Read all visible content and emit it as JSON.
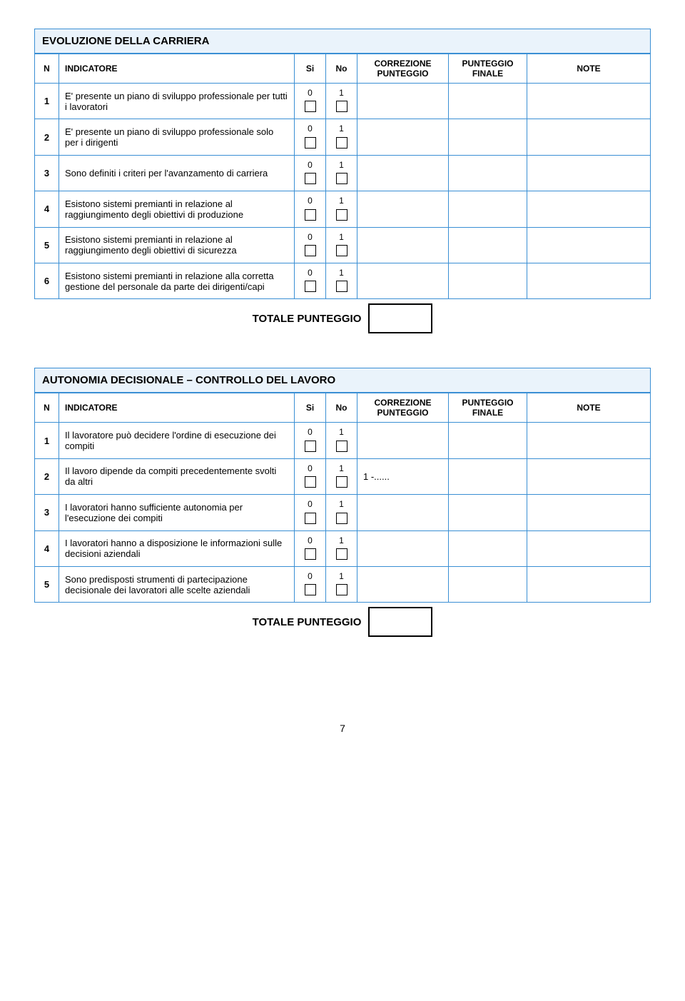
{
  "page_number": "7",
  "tables": [
    {
      "title": "EVOLUZIONE DELLA CARRIERA",
      "headers": {
        "n": "N",
        "indicator": "INDICATORE",
        "si": "Si",
        "no": "No",
        "correzione": "CORREZIONE PUNTEGGIO",
        "finale": "PUNTEGGIO FINALE",
        "note": "NOTE"
      },
      "rows": [
        {
          "n": "1",
          "text": "E' presente un piano di sviluppo professionale per tutti i lavoratori",
          "si": "0",
          "no": "1",
          "corr": ""
        },
        {
          "n": "2",
          "text": "E' presente un piano di sviluppo professionale solo per i dirigenti",
          "si": "0",
          "no": "1",
          "corr": ""
        },
        {
          "n": "3",
          "text": "Sono definiti i criteri per l'avanzamento di carriera",
          "si": "0",
          "no": "1",
          "corr": ""
        },
        {
          "n": "4",
          "text": "Esistono sistemi premianti in relazione al raggiungimento degli obiettivi di produzione",
          "si": "0",
          "no": "1",
          "corr": ""
        },
        {
          "n": "5",
          "text": "Esistono sistemi premianti in relazione al raggiungimento degli obiettivi di sicurezza",
          "si": "0",
          "no": "1",
          "corr": ""
        },
        {
          "n": "6",
          "text": "Esistono sistemi premianti in relazione alla corretta gestione del personale da parte dei dirigenti/capi",
          "si": "0",
          "no": "1",
          "corr": ""
        }
      ],
      "total_label": "TOTALE PUNTEGGIO"
    },
    {
      "title": "AUTONOMIA DECISIONALE – CONTROLLO DEL LAVORO",
      "headers": {
        "n": "N",
        "indicator": "INDICATORE",
        "si": "Si",
        "no": "No",
        "correzione": "CORREZIONE PUNTEGGIO",
        "finale": "PUNTEGGIO FINALE",
        "note": "NOTE"
      },
      "rows": [
        {
          "n": "1",
          "text": "Il lavoratore può decidere l'ordine di esecuzione dei compiti",
          "si": "0",
          "no": "1",
          "corr": ""
        },
        {
          "n": "2",
          "text": "Il lavoro dipende da compiti precedentemente svolti da altri",
          "si": "0",
          "no": "1",
          "corr": "1 -......"
        },
        {
          "n": "3",
          "text": "I lavoratori hanno sufficiente autonomia per l'esecuzione dei compiti",
          "si": "0",
          "no": "1",
          "corr": ""
        },
        {
          "n": "4",
          "text": "I lavoratori hanno a disposizione le informazioni sulle decisioni aziendali",
          "si": "0",
          "no": "1",
          "corr": ""
        },
        {
          "n": "5",
          "text": "Sono predisposti strumenti di partecipazione decisionale dei lavoratori alle scelte aziendali",
          "si": "0",
          "no": "1",
          "corr": ""
        }
      ],
      "total_label": "TOTALE PUNTEGGIO"
    }
  ]
}
